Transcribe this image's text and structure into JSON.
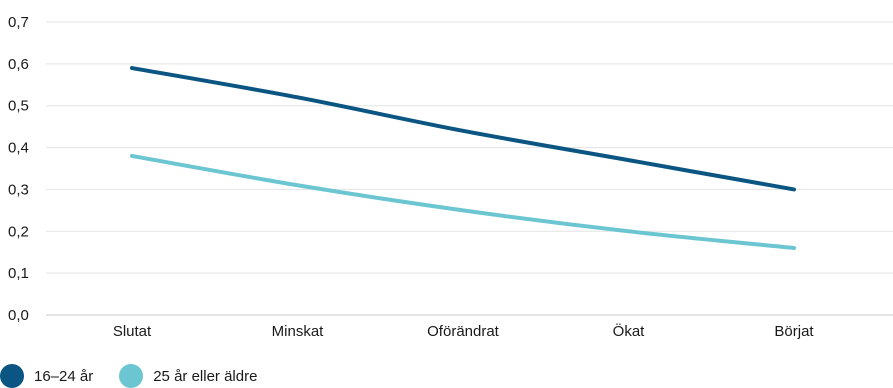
{
  "chart_data": {
    "type": "line",
    "title": "",
    "xlabel": "",
    "ylabel": "",
    "categories": [
      "Slutat",
      "Minskat",
      "Oförändrat",
      "Ökat",
      "Börjat"
    ],
    "series": [
      {
        "name": "16–24 år",
        "values": [
          0.59,
          0.52,
          0.44,
          0.37,
          0.3
        ],
        "color": "#0a5582"
      },
      {
        "name": "25 år eller äldre",
        "values": [
          0.38,
          0.31,
          0.25,
          0.2,
          0.16
        ],
        "color": "#6cc6d2"
      }
    ],
    "ylim": [
      0,
      0.7
    ],
    "yticks": [
      "0,0",
      "0,1",
      "0,2",
      "0,3",
      "0,4",
      "0,5",
      "0,6",
      "0,7"
    ],
    "grid": true,
    "legend_position": "bottom-left"
  }
}
